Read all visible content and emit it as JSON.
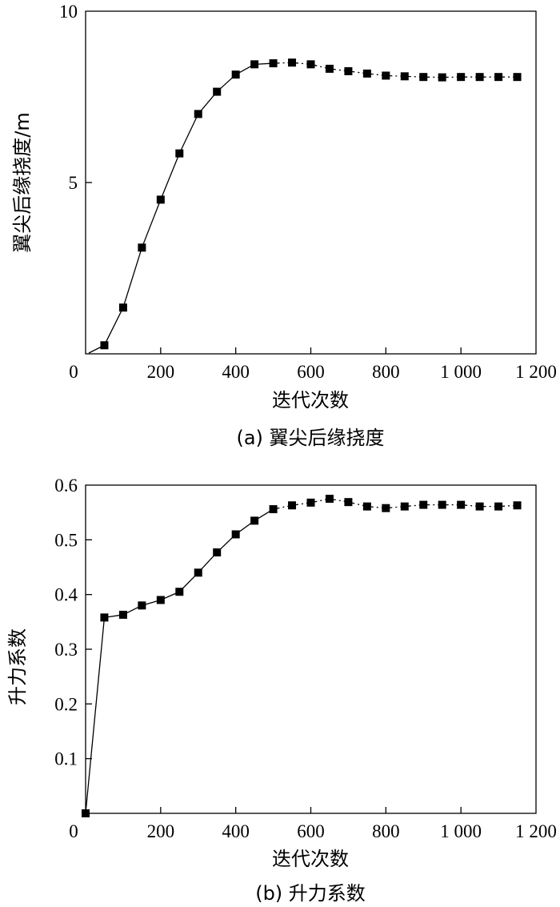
{
  "chart_data": [
    {
      "type": "line",
      "caption": "(a) 翼尖后缘挠度",
      "xlabel": "迭代次数",
      "ylabel": "翼尖后缘挠度/m",
      "xlim": [
        0,
        1200
      ],
      "ylim": [
        0,
        10
      ],
      "xticks": [
        0,
        200,
        400,
        600,
        800,
        1000,
        1200
      ],
      "xtick_labels": [
        "0",
        "200",
        "400",
        "600",
        "800",
        "1 000",
        "1 200"
      ],
      "yticks": [
        5,
        10
      ],
      "ytick_labels": [
        "5",
        "10"
      ],
      "marker": "square",
      "x": [
        50,
        100,
        150,
        200,
        250,
        300,
        350,
        400,
        450,
        500,
        550,
        600,
        650,
        700,
        750,
        800,
        850,
        900,
        950,
        1000,
        1050,
        1100,
        1150
      ],
      "y": [
        0.25,
        1.35,
        3.1,
        4.5,
        5.85,
        7.0,
        7.65,
        8.15,
        8.45,
        8.48,
        8.5,
        8.45,
        8.32,
        8.25,
        8.18,
        8.12,
        8.1,
        8.08,
        8.07,
        8.08,
        8.08,
        8.08,
        8.08
      ],
      "grid": false
    },
    {
      "type": "line",
      "caption": "(b) 升力系数",
      "xlabel": "迭代次数",
      "ylabel": "升力系数",
      "xlim": [
        0,
        1200
      ],
      "ylim": [
        0,
        0.6
      ],
      "xticks": [
        0,
        200,
        400,
        600,
        800,
        1000,
        1200
      ],
      "xtick_labels": [
        "0",
        "200",
        "400",
        "600",
        "800",
        "1 000",
        "1 200"
      ],
      "yticks": [
        0.1,
        0.2,
        0.3,
        0.4,
        0.5,
        0.6
      ],
      "ytick_labels": [
        "0.1",
        "0.2",
        "0.3",
        "0.4",
        "0.5",
        "0.6"
      ],
      "marker": "square",
      "x": [
        0,
        50,
        100,
        150,
        200,
        250,
        300,
        350,
        400,
        450,
        500,
        550,
        600,
        650,
        700,
        750,
        800,
        850,
        900,
        950,
        1000,
        1050,
        1100,
        1150
      ],
      "y": [
        0.0,
        0.358,
        0.363,
        0.38,
        0.39,
        0.405,
        0.44,
        0.477,
        0.51,
        0.535,
        0.556,
        0.563,
        0.568,
        0.575,
        0.569,
        0.561,
        0.558,
        0.561,
        0.564,
        0.564,
        0.564,
        0.561,
        0.561,
        0.563
      ],
      "grid": false
    }
  ]
}
